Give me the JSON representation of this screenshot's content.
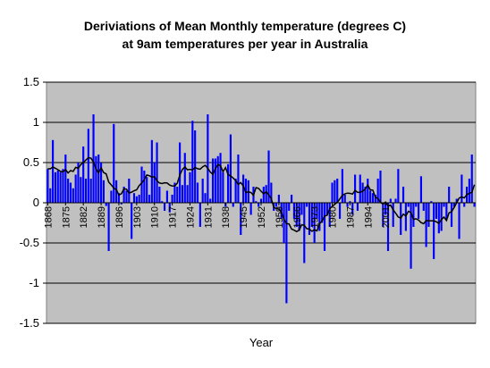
{
  "chart_data": {
    "type": "bar",
    "title_lines": [
      "Deriviations of Mean Monthly temperature (degrees C)",
      "at 9am temperatures per year in Australia"
    ],
    "xlabel": "Year",
    "ylabel": "",
    "ylim": [
      -1.5,
      1.5
    ],
    "y_ticks": [
      "1.5",
      "1",
      "0.5",
      "0",
      "-0.5",
      "-1",
      "-1.5"
    ],
    "y_tick_values": [
      1.5,
      1,
      0.5,
      0,
      -0.5,
      -1,
      -1.5
    ],
    "x_tick_labels": [
      "1868",
      "1875",
      "1882",
      "1889",
      "1896",
      "1903",
      "1910",
      "1917",
      "1924",
      "1931",
      "1938",
      "1945",
      "1952",
      "1959",
      "1966",
      "1973",
      "1980",
      "1987",
      "1994",
      "2001"
    ],
    "legend": "none",
    "grid": "horizontal",
    "plot_background": "#c0c0c0",
    "bar_color": "#0000ff",
    "line_color": "#000000",
    "gridline_color": "#000000",
    "years_start": 1868,
    "values": [
      0.42,
      0.18,
      0.78,
      0.38,
      0.4,
      0.38,
      0.42,
      0.6,
      0.3,
      0.25,
      0.18,
      0.35,
      0.5,
      0.32,
      0.7,
      0.3,
      0.92,
      0.3,
      1.1,
      0.58,
      0.6,
      0.5,
      0.28,
      -0.04,
      -0.6,
      0.15,
      0.98,
      0.28,
      0.12,
      -0.02,
      0.2,
      0.15,
      0.3,
      -0.45,
      0.12,
      0.08,
      0.1,
      0.45,
      0.4,
      0.32,
      0.1,
      0.78,
      0.5,
      0.75,
      0.2,
      0.02,
      -0.1,
      0.15,
      -0.12,
      0.1,
      0.25,
      0.2,
      0.75,
      0.22,
      0.62,
      0.22,
      0.38,
      1.02,
      0.9,
      0.25,
      -0.3,
      0.3,
      0.12,
      1.1,
      0.05,
      0.55,
      0.55,
      0.58,
      0.62,
      0.38,
      -0.05,
      0.48,
      0.85,
      -0.05,
      0.3,
      0.6,
      -0.4,
      0.35,
      0.3,
      0.28,
      -0.15,
      0.2,
      0.02,
      -0.05,
      0.05,
      0.2,
      0.22,
      0.65,
      0.25,
      -0.1,
      -0.05,
      0.1,
      -0.2,
      -0.5,
      -1.25,
      -0.1,
      0.1,
      -0.2,
      -0.3,
      -0.35,
      -0.15,
      -0.75,
      -0.05,
      -0.4,
      -0.3,
      -0.5,
      -0.2,
      -0.35,
      -0.25,
      -0.6,
      -0.15,
      -0.3,
      0.25,
      0.28,
      0.3,
      -0.2,
      0.42,
      0.1,
      -0.05,
      0.02,
      -0.15,
      0.35,
      -0.1,
      0.35,
      0.25,
      0.2,
      0.3,
      0.15,
      0.12,
      0.1,
      0.3,
      0.4,
      -0.3,
      -0.15,
      -0.6,
      0.05,
      -0.3,
      0.05,
      0.42,
      -0.4,
      0.2,
      -0.35,
      -0.05,
      -0.82,
      -0.3,
      -0.05,
      -0.2,
      0.33,
      -0.1,
      -0.55,
      -0.3,
      0.02,
      -0.7,
      -0.2,
      -0.38,
      -0.35,
      -0.05,
      -0.2,
      0.2,
      -0.3,
      -0.05,
      0.05,
      -0.45,
      0.35,
      -0.05,
      0.2,
      0.3,
      0.6,
      -0.05
    ]
  }
}
